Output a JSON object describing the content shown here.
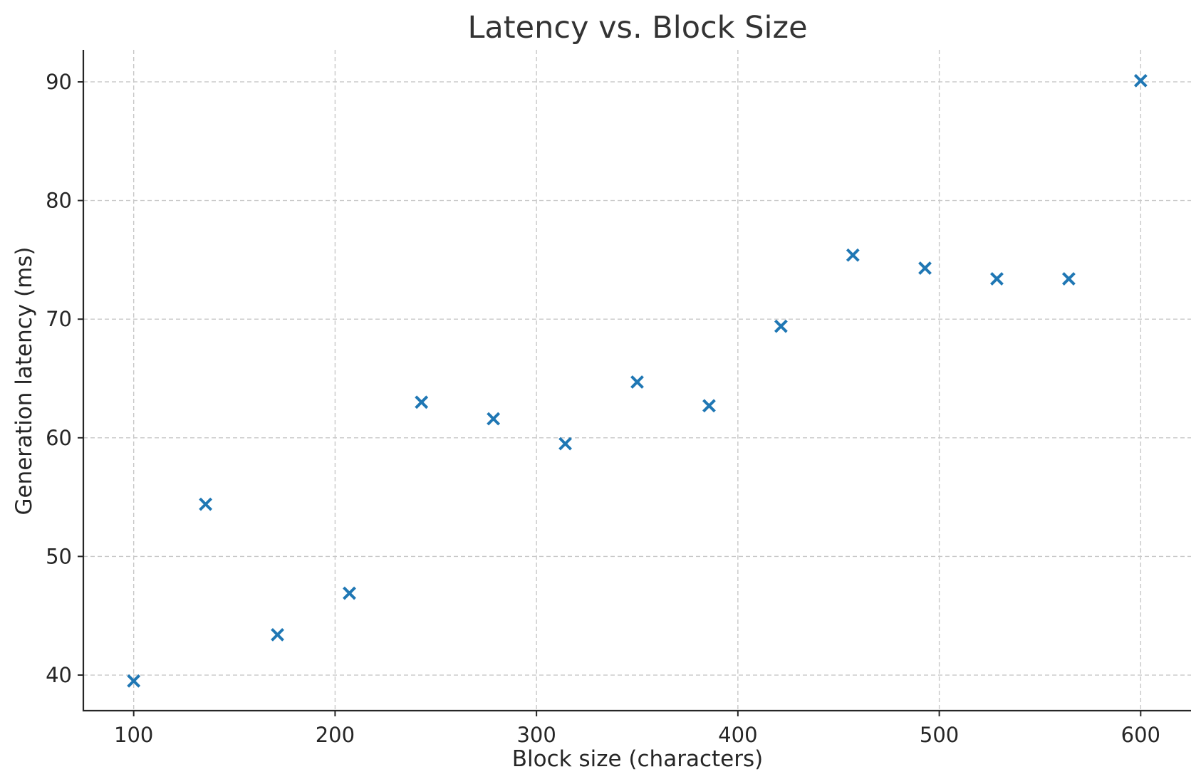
{
  "chart_data": {
    "type": "scatter",
    "title": "Latency vs. Block Size",
    "xlabel": "Block size (characters)",
    "ylabel": "Generation latency (ms)",
    "xlim": [
      75,
      625
    ],
    "ylim": [
      37,
      92.7
    ],
    "xticks": [
      100,
      200,
      300,
      400,
      500,
      600
    ],
    "yticks": [
      40,
      50,
      60,
      70,
      80,
      90
    ],
    "grid": true,
    "marker": "x",
    "color": "#1f77b4",
    "series": [
      {
        "x": [
          100,
          135.7,
          171.4,
          207.1,
          242.9,
          278.6,
          314.3,
          350,
          385.7,
          421.4,
          457.1,
          492.9,
          528.6,
          564.3,
          600
        ],
        "y": [
          39.5,
          54.4,
          43.4,
          46.9,
          63.0,
          61.6,
          59.5,
          64.7,
          62.7,
          69.4,
          75.4,
          74.3,
          73.4,
          73.4,
          90.1
        ]
      }
    ]
  }
}
